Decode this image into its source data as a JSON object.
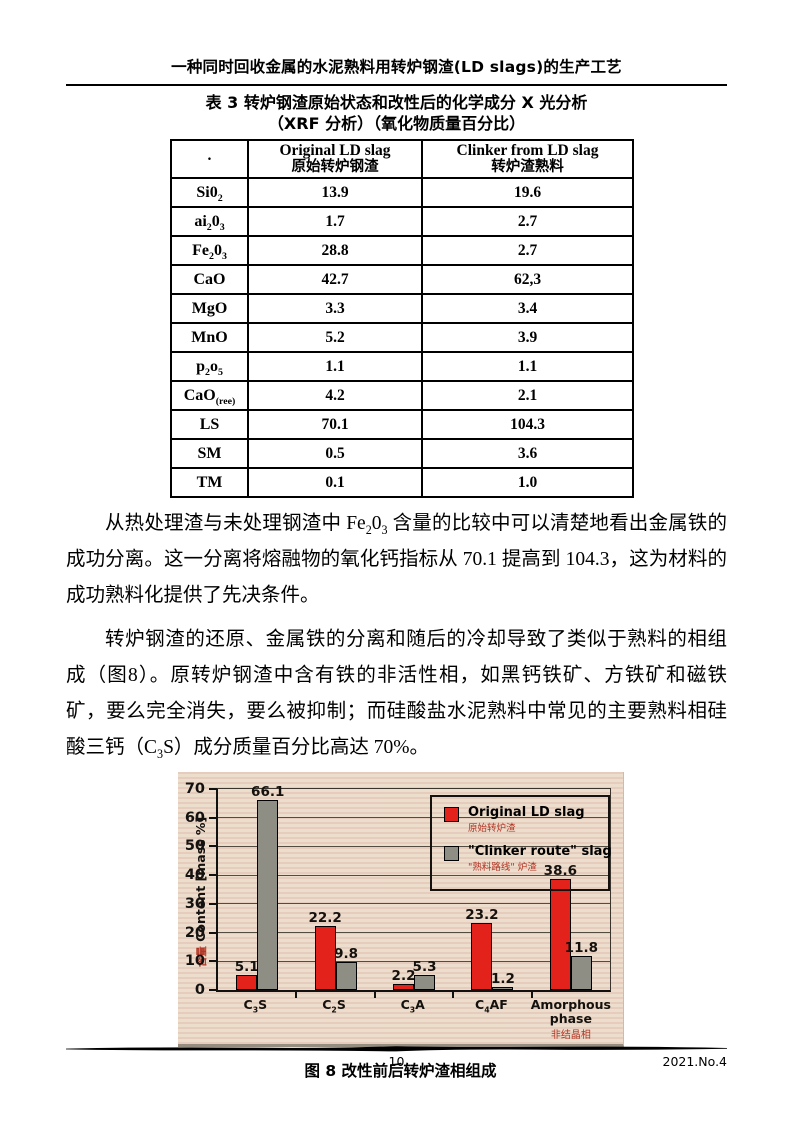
{
  "page": {
    "header_title": "一种同时回收金属的水泥熟料用转炉钢渣(LD slags)的生产工艺",
    "footer": {
      "page_number": "10",
      "issue": "2021.No.4"
    }
  },
  "table": {
    "title_line1": "表 3 转炉钢渣原始状态和改性后的化学成分 X 光分析",
    "title_line2": "（XRF 分析）（氧化物质量百分比）",
    "header": {
      "col0": "·",
      "col1_en": "Original LD slag",
      "col1_zh": "原始转炉钢渣",
      "col2_en": "Clinker from LD slag",
      "col2_zh": "转炉渣熟料"
    },
    "rows": [
      {
        "label": "Si0~2~",
        "v1": "13.9",
        "v2": "19.6"
      },
      {
        "label": "ai~2~0~3~",
        "v1": "1.7",
        "v2": "2.7"
      },
      {
        "label": "Fe~2~0~3~",
        "v1": "28.8",
        "v2": "2.7"
      },
      {
        "label": "CaO",
        "v1": "42.7",
        "v2": "62,3"
      },
      {
        "label": "MgO",
        "v1": "3.3",
        "v2": "3.4"
      },
      {
        "label": "MnO",
        "v1": "5.2",
        "v2": "3.9"
      },
      {
        "label": "p~2~o~5~",
        "v1": "1.1",
        "v2": "1.1"
      },
      {
        "label": "CaO~(ree)~",
        "v1": "4.2",
        "v2": "2.1"
      },
      {
        "label": "LS",
        "v1": "70.1",
        "v2": "104.3"
      },
      {
        "label": "SM",
        "v1": "0.5",
        "v2": "3.6"
      },
      {
        "label": "TM",
        "v1": "0.1",
        "v2": "1.0"
      }
    ]
  },
  "paragraphs": {
    "p1": "从热处理渣与未处理钢渣中 Fe~2~0~3~ 含量的比较中可以清楚地看出金属铁的成功分离。这一分离将熔融物的氧化钙指标从 70.1 提高到 104.3，这为材料的成功熟料化提供了先决条件。",
    "p2": "转炉钢渣的还原、金属铁的分离和随后的冷却导致了类似于熟料的相组成（图8）。原转炉钢渣中含有铁的非活性相，如黑钙铁矿、方铁矿和磁铁矿，要么完全消失，要么被抑制；而硅酸盐水泥熟料中常见的主要熟料相硅酸三钙（C~3~S）成分质量百分比高达 70%。"
  },
  "figure": {
    "caption": "图 8 改性前后转炉渣相组成",
    "colors": {
      "scan_background": "#e9d8c6",
      "chinese_accent_red": "#b23424"
    }
  },
  "chart_data": {
    "type": "bar",
    "title": "",
    "categories": [
      "C3S",
      "C2S",
      "C3A",
      "C4AF",
      "Amorphous phase"
    ],
    "categories_display": [
      "C~3~S",
      "C~2~S",
      "C~3~A",
      "C~4~AF",
      "Amorphous phase"
    ],
    "category_notes_zh": [
      "",
      "",
      "",
      "",
      "非结晶相"
    ],
    "series": [
      {
        "name": "Original LD slag",
        "name_zh": "原始转炉渣",
        "color": "#e3231b",
        "values": [
          5.1,
          22.2,
          2.2,
          23.2,
          38.6
        ]
      },
      {
        "name": "\"Clinker route\" slag",
        "name_zh": "\"熟料路线\" 炉渣",
        "color": "#8e8e85",
        "values": [
          66.1,
          9.8,
          5.3,
          1.2,
          11.8
        ]
      }
    ],
    "xlabel": "",
    "ylabel_zh": "含量",
    "ylabel_en": "Content [mass %]",
    "ylim": [
      0,
      70
    ],
    "ytick_step": 10,
    "grid": true,
    "legend_position": "top-right",
    "value_labels": true
  }
}
